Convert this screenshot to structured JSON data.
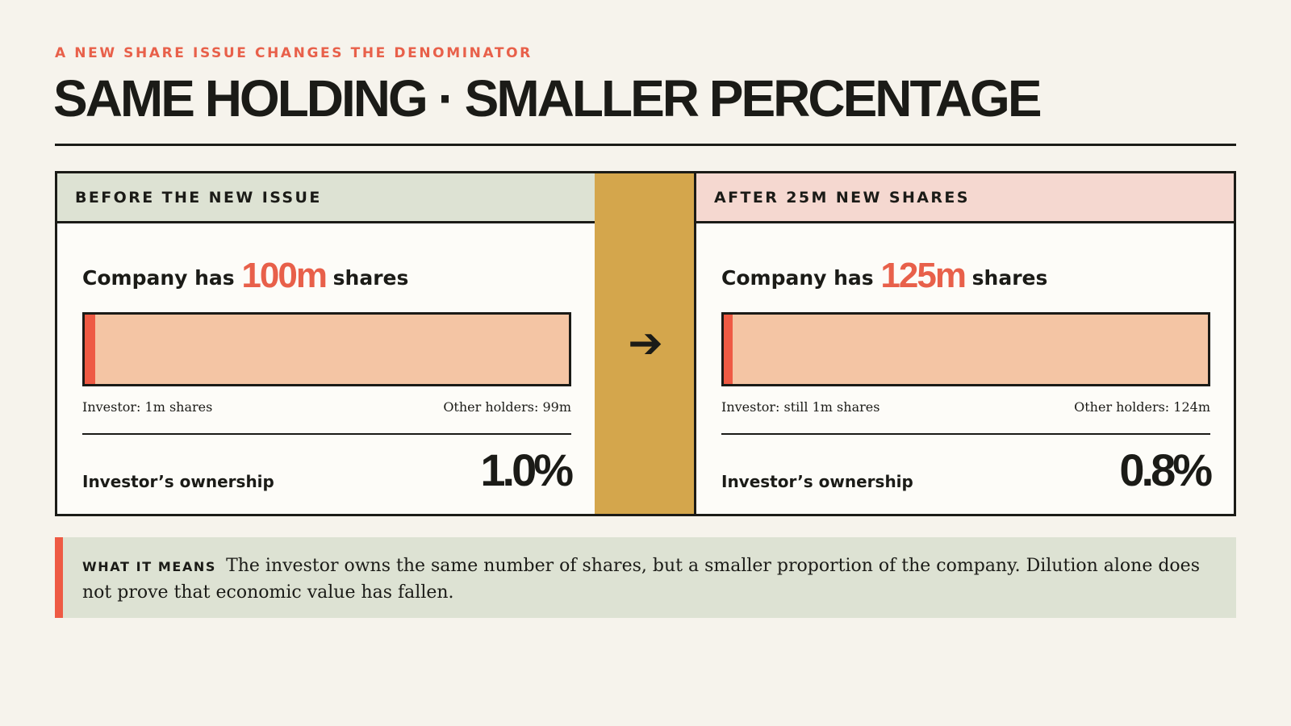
{
  "kicker": "A NEW SHARE ISSUE CHANGES THE DENOMINATOR",
  "title": "SAME HOLDING · SMALLER PERCENTAGE",
  "before": {
    "header": "BEFORE THE NEW ISSUE",
    "company_prefix": "Company has",
    "total_shares": "100m",
    "company_suffix": "shares",
    "investor_label": "Investor: 1m shares",
    "others_label": "Other holders: 99m",
    "investor_fraction": 0.01,
    "ownership_label": "Investor’s ownership",
    "ownership_value": "1.0%"
  },
  "arrow": {
    "icon": "arrow-right-icon"
  },
  "after": {
    "header": "AFTER 25M NEW SHARES",
    "company_prefix": "Company has",
    "total_shares": "125m",
    "company_suffix": "shares",
    "investor_label": "Investor: still 1m shares",
    "others_label": "Other holders: 124m",
    "investor_fraction": 0.008,
    "ownership_label": "Investor’s ownership",
    "ownership_value": "0.8%"
  },
  "note": {
    "label": "WHAT IT MEANS",
    "text": "The investor owns the same number of shares, but a smaller proportion of the company. Dilution alone does not prove that economic value has fallen."
  },
  "colors": {
    "accent": "#e8604a",
    "investor_fill": "#ee5a44",
    "others_fill": "#f4c5a4",
    "arrow_column": "#d4a64c",
    "before_header": "#dde2d3",
    "after_header": "#f5d8d0"
  }
}
